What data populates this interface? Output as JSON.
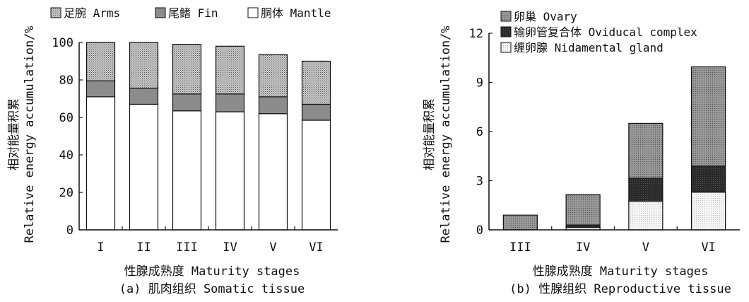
{
  "chart_data": [
    {
      "type": "bar",
      "stacked": true,
      "categories": [
        "I",
        "II",
        "III",
        "IV",
        "V",
        "VI"
      ],
      "series": [
        {
          "name": "胴体 Mantle",
          "values": [
            71,
            67,
            63.5,
            63,
            62,
            58.5
          ],
          "color": "#ffffff"
        },
        {
          "name": "尾鳍 Fin",
          "values": [
            8.5,
            8.5,
            9,
            9.5,
            9,
            8.5
          ],
          "color": "#8c8c8c"
        },
        {
          "name": "足腕 Arms",
          "values": [
            20.5,
            24.5,
            26.5,
            25.5,
            22.5,
            23
          ],
          "color": "#c4c4c4"
        }
      ],
      "legend_order": [
        "足腕 Arms",
        "尾鳍 Fin",
        "胴体 Mantle"
      ],
      "xlabel": "性腺成熟度 Maturity stages",
      "ylabel_cn": "相对能量积累",
      "ylabel_en": "Relative energy accumulation/%",
      "yticks": [
        0,
        20,
        40,
        60,
        80,
        100
      ],
      "ylim": [
        0,
        100
      ],
      "caption": "(a) 肌肉组织 Somatic tissue",
      "legend_position": "top"
    },
    {
      "type": "bar",
      "stacked": true,
      "categories": [
        "III",
        "IV",
        "V",
        "VI"
      ],
      "series": [
        {
          "name": "缠卵腺 Nidamental gland",
          "values": [
            0,
            0.15,
            1.75,
            2.3
          ],
          "color": "#eeeeee"
        },
        {
          "name": "输卵管复合体 Oviducal complex",
          "values": [
            0,
            0.15,
            1.4,
            1.6
          ],
          "color": "#2a2a2a"
        },
        {
          "name": "卵巢 Ovary",
          "values": [
            0.9,
            1.85,
            3.35,
            6.05
          ],
          "color": "#8f8f8f"
        }
      ],
      "legend_order": [
        "卵巢 Ovary",
        "输卵管复合体 Oviducal complex",
        "缠卵腺 Nidamental gland"
      ],
      "xlabel": "性腺成熟度 Maturity stages",
      "ylabel_cn": "相对能量积累",
      "ylabel_en": "Relative energy accumulation/%",
      "yticks": [
        0,
        3,
        6,
        9,
        12
      ],
      "ylim": [
        0,
        12
      ],
      "caption": "(b) 性腺组织 Reproductive tissue",
      "legend_position": "top-left"
    }
  ]
}
